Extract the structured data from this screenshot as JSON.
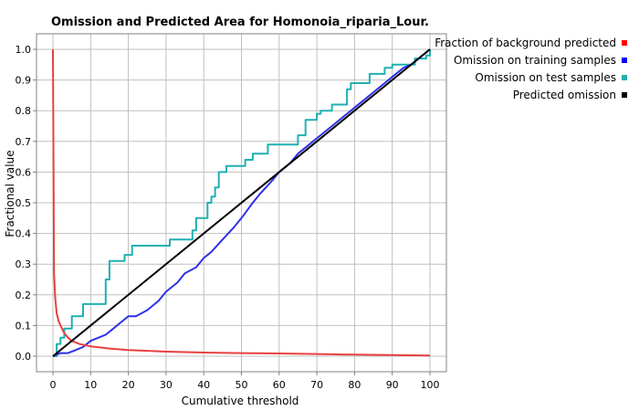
{
  "chart_data": {
    "type": "line",
    "title": "Omission and Predicted Area for Homonoia_riparia_Lour.",
    "xlabel": "Cumulative threshold",
    "ylabel": "Fractional value",
    "xlim": [
      0,
      100
    ],
    "ylim": [
      0,
      1
    ],
    "xticks": [
      0,
      10,
      20,
      30,
      40,
      50,
      60,
      70,
      80,
      90,
      100
    ],
    "yticks": [
      0.0,
      0.1,
      0.2,
      0.3,
      0.4,
      0.5,
      0.6,
      0.7,
      0.8,
      0.9,
      1.0
    ],
    "xtick_labels": [
      "0",
      "10",
      "20",
      "30",
      "40",
      "50",
      "60",
      "70",
      "80",
      "90",
      "100"
    ],
    "ytick_labels": [
      "0.0",
      "0.1",
      "0.2",
      "0.3",
      "0.4",
      "0.5",
      "0.6",
      "0.7",
      "0.8",
      "0.9",
      "1.0"
    ],
    "grid": true,
    "legend_position": "right",
    "series": [
      {
        "name": "Fraction of background predicted",
        "color": "#ff0000",
        "line_color": "#e84040",
        "x": [
          0,
          0.3,
          0.6,
          1,
          1.5,
          2,
          3,
          4,
          5,
          7,
          10,
          15,
          20,
          30,
          40,
          50,
          60,
          70,
          80,
          90,
          100
        ],
        "y": [
          1.0,
          0.27,
          0.19,
          0.14,
          0.115,
          0.1,
          0.075,
          0.06,
          0.05,
          0.04,
          0.032,
          0.025,
          0.02,
          0.015,
          0.012,
          0.01,
          0.009,
          0.007,
          0.005,
          0.004,
          0.002
        ]
      },
      {
        "name": "Omission on training samples",
        "color": "#0000ff",
        "line_color": "#3030e8",
        "x": [
          0,
          2,
          4,
          6,
          8,
          10,
          12,
          14,
          16,
          18,
          20,
          22,
          25,
          28,
          30,
          33,
          35,
          38,
          40,
          42,
          45,
          48,
          50,
          53,
          55,
          58,
          60,
          63,
          65,
          68,
          70,
          73,
          75,
          78,
          80,
          83,
          85,
          88,
          90,
          93,
          95,
          98,
          100
        ],
        "y": [
          0,
          0.01,
          0.01,
          0.02,
          0.03,
          0.05,
          0.06,
          0.07,
          0.09,
          0.11,
          0.13,
          0.13,
          0.15,
          0.18,
          0.21,
          0.24,
          0.27,
          0.29,
          0.32,
          0.34,
          0.38,
          0.42,
          0.45,
          0.5,
          0.53,
          0.57,
          0.6,
          0.63,
          0.66,
          0.69,
          0.71,
          0.74,
          0.76,
          0.79,
          0.81,
          0.84,
          0.86,
          0.89,
          0.91,
          0.94,
          0.95,
          0.98,
          1.0
        ]
      },
      {
        "name": "Omission on test samples",
        "color": "#20b0b0",
        "line_color": "#20b0b0",
        "step": true,
        "x": [
          0,
          1,
          2,
          3,
          5,
          8,
          10,
          13,
          14,
          15,
          19,
          21,
          30,
          31,
          37,
          38,
          41,
          42,
          43,
          44,
          46,
          50,
          51,
          53,
          57,
          59,
          65,
          67,
          70,
          71,
          74,
          77,
          78,
          79,
          83,
          84,
          88,
          89,
          90,
          95,
          96,
          99,
          100
        ],
        "y": [
          0,
          0.04,
          0.06,
          0.09,
          0.13,
          0.17,
          0.17,
          0.17,
          0.25,
          0.31,
          0.33,
          0.36,
          0.36,
          0.38,
          0.41,
          0.45,
          0.5,
          0.52,
          0.55,
          0.6,
          0.62,
          0.62,
          0.64,
          0.66,
          0.69,
          0.69,
          0.72,
          0.77,
          0.79,
          0.8,
          0.82,
          0.82,
          0.87,
          0.89,
          0.89,
          0.92,
          0.94,
          0.94,
          0.95,
          0.95,
          0.97,
          0.98,
          1.0
        ]
      },
      {
        "name": "Predicted omission",
        "color": "#000000",
        "line_color": "#000000",
        "x": [
          0,
          100
        ],
        "y": [
          0,
          1
        ]
      }
    ]
  }
}
